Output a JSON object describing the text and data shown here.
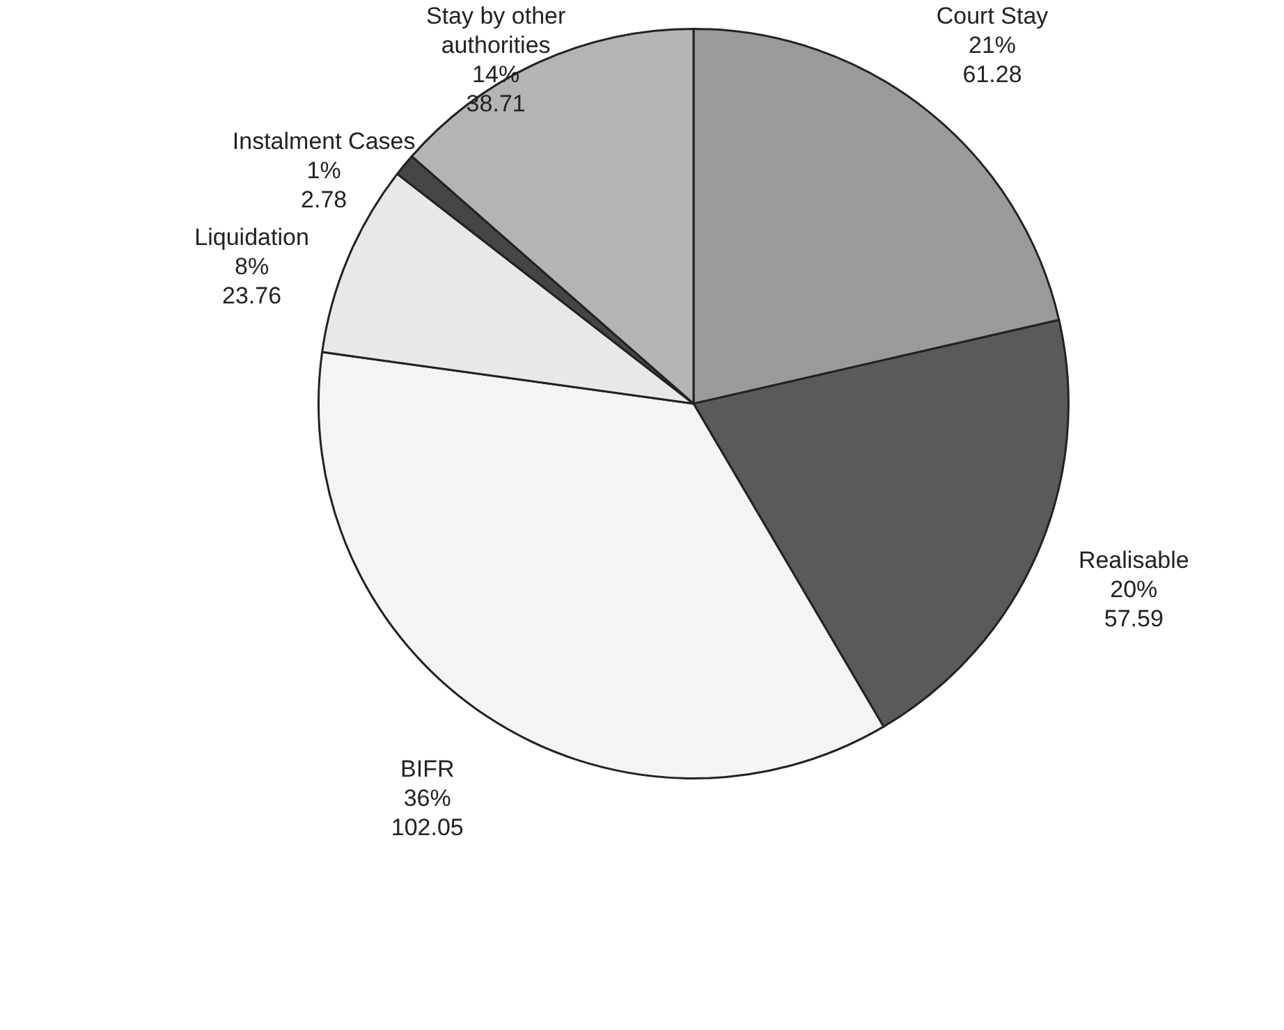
{
  "chart_data": {
    "type": "pie",
    "categories": [
      "Court Stay",
      "Realisable",
      "BIFR",
      "Liquidation",
      "Instalment Cases",
      "Stay by other authorities"
    ],
    "values": [
      61.28,
      57.59,
      102.05,
      23.76,
      2.78,
      38.71
    ],
    "value_labels": [
      "21%\n61.28",
      "20%\n57.59",
      "36%\n102.05",
      "8%\n23.76",
      "1%\n2.78",
      "14%\n38.71"
    ],
    "colors": [
      "#9a9a9a",
      "#5a5a5a",
      "#f4f4f4",
      "#e8e8e8",
      "#454545",
      "#b4b4b4"
    ],
    "legend": false
  }
}
